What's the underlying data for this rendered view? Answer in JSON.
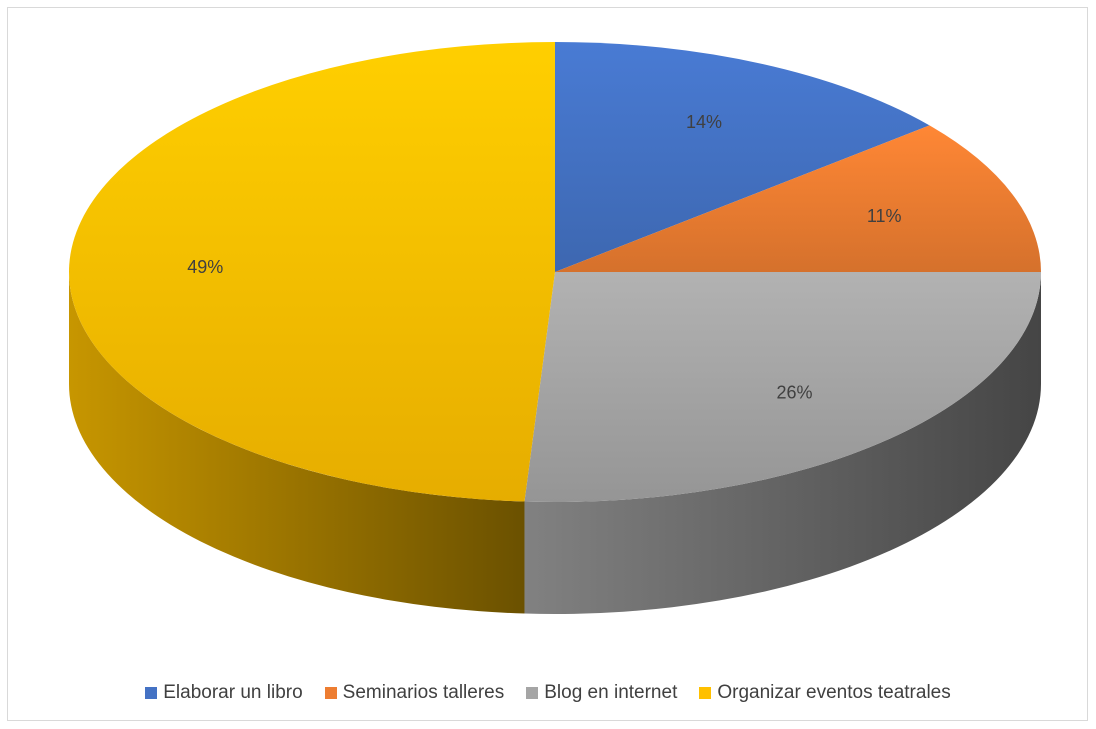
{
  "chart_data": {
    "type": "pie",
    "style": "3d",
    "categories": [
      "Elaborar un libro",
      "Seminarios talleres",
      "Blog en internet",
      "Organizar eventos teatrales"
    ],
    "values": [
      14,
      11,
      26,
      49
    ],
    "labels": [
      "14%",
      "11%",
      "26%",
      "49%"
    ],
    "colors": [
      "#4472C4",
      "#ED7D31",
      "#A5A5A5",
      "#FFC000"
    ],
    "legend_position": "bottom",
    "start_angle_deg": 0,
    "direction": "clockwise"
  }
}
